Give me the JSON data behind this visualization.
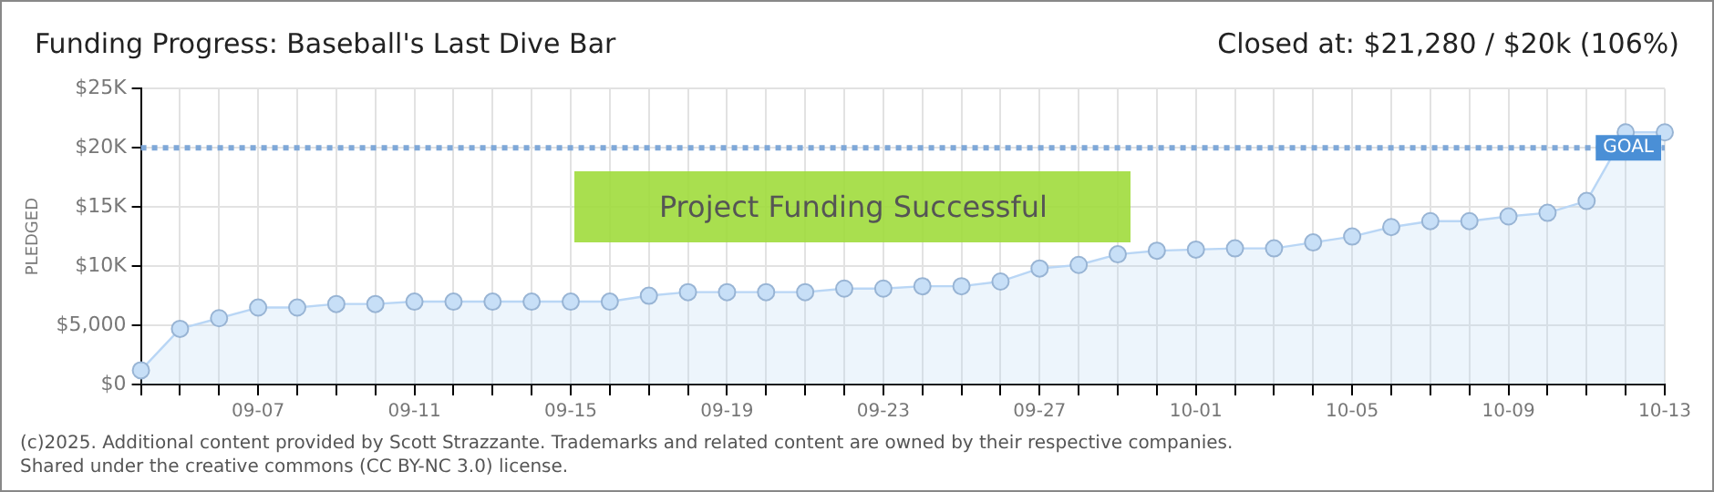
{
  "chart_data": {
    "type": "area",
    "title": "Funding Progress: Baseball's Last Dive Bar",
    "subtitle": "Closed at: $21,280 / $20k (106%)",
    "ylabel": "PLEDGED",
    "categories": [
      null,
      null,
      null,
      "09-07",
      null,
      null,
      null,
      "09-11",
      null,
      null,
      null,
      "09-15",
      null,
      null,
      null,
      "09-19",
      null,
      null,
      null,
      "09-23",
      null,
      null,
      null,
      "09-27",
      null,
      null,
      null,
      "10-01",
      null,
      null,
      null,
      "10-05",
      null,
      null,
      null,
      "10-09",
      null,
      null,
      null,
      "10-13"
    ],
    "series": [
      {
        "color": "#b9d6f5",
        "values": [
          1200,
          4700,
          5600,
          6500,
          6500,
          6800,
          6800,
          7000,
          7000,
          7000,
          7000,
          7000,
          7000,
          7500,
          7800,
          7800,
          7800,
          7800,
          8100,
          8100,
          8300,
          8300,
          8700,
          9800,
          10100,
          11000,
          11300,
          11400,
          11500,
          11500,
          12000,
          12500,
          13300,
          13800,
          13800,
          14200,
          14500,
          15500,
          21300,
          21300
        ]
      }
    ],
    "ylim": [
      0,
      25000
    ],
    "yticks": [
      {
        "value": 0,
        "label": "$0"
      },
      {
        "value": 5000,
        "label": "$5,000"
      },
      {
        "value": 10000,
        "label": "$10K"
      },
      {
        "value": 15000,
        "label": "$15K"
      },
      {
        "value": 20000,
        "label": "$20K"
      },
      {
        "value": 25000,
        "label": "$25K"
      }
    ],
    "grid": true,
    "legend": false,
    "marker": "circle",
    "line_style": "solid",
    "ref_lines": [
      {
        "axis": "y",
        "value": 20000,
        "label": "GOAL",
        "color": "#7fa8d8",
        "line_style": "dotted"
      }
    ],
    "annotations": [
      "Project Funding Successful",
      "(c)2025. Additional content provided by Scott Strazzante. Trademarks and related content are owned by their respective companies.",
      "Shared under the creative commons (CC BY-NC 3.0) license."
    ]
  }
}
